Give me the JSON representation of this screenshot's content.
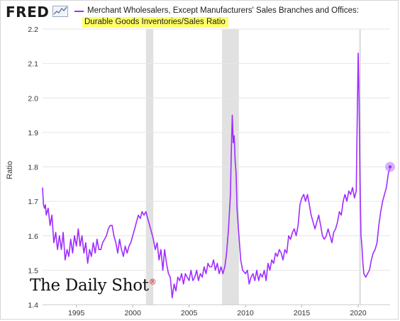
{
  "header": {
    "logo_text": "FRED",
    "logo_icon": "line-chart-icon",
    "legend_line1": "Merchant Wholesalers, Except Manufacturers' Sales Branches and Offices:",
    "legend_line2": "Durable Goods Inventories/Sales Ratio",
    "highlight_color": "#ffff66"
  },
  "watermark": {
    "text": "The Daily Shot",
    "mark": "®"
  },
  "colors": {
    "series": "#a02cff",
    "recession": "#e1e1e1",
    "grid": "#e6e6e6",
    "marker": "#b97fff"
  },
  "chart_data": {
    "type": "line",
    "title": "",
    "xlabel": "",
    "ylabel": "Ratio",
    "ylim": [
      1.4,
      2.2
    ],
    "xlim": [
      1992.0,
      2022.83
    ],
    "yticks": [
      1.4,
      1.5,
      1.6,
      1.7,
      1.8,
      1.9,
      2.0,
      2.1,
      2.2
    ],
    "xticks": [
      1995,
      2000,
      2005,
      2010,
      2015,
      2020
    ],
    "grid": "horizontal",
    "legend_position": "top",
    "recessions": [
      [
        2001.17,
        2001.83
      ],
      [
        2007.92,
        2009.42
      ],
      [
        2020.08,
        2020.25
      ]
    ],
    "series": [
      {
        "name": "Merchant Wholesalers, Except Manufacturers' Sales Branches and Offices: Durable Goods Inventories/Sales Ratio",
        "x": [
          1992.0,
          1992.08,
          1992.17,
          1992.25,
          1992.33,
          1992.5,
          1992.67,
          1992.83,
          1993.0,
          1993.17,
          1993.33,
          1993.5,
          1993.67,
          1993.83,
          1994.0,
          1994.17,
          1994.33,
          1994.5,
          1994.67,
          1994.83,
          1995.0,
          1995.17,
          1995.33,
          1995.5,
          1995.67,
          1995.83,
          1996.0,
          1996.17,
          1996.33,
          1996.5,
          1996.67,
          1996.83,
          1997.0,
          1997.17,
          1997.33,
          1997.5,
          1997.67,
          1997.83,
          1998.0,
          1998.17,
          1998.33,
          1998.5,
          1998.67,
          1998.83,
          1999.0,
          1999.17,
          1999.33,
          1999.5,
          1999.67,
          1999.83,
          2000.0,
          2000.17,
          2000.33,
          2000.5,
          2000.67,
          2000.83,
          2001.0,
          2001.17,
          2001.33,
          2001.5,
          2001.67,
          2001.83,
          2002.0,
          2002.17,
          2002.33,
          2002.5,
          2002.67,
          2002.83,
          2003.0,
          2003.17,
          2003.33,
          2003.5,
          2003.67,
          2003.83,
          2004.0,
          2004.17,
          2004.33,
          2004.5,
          2004.67,
          2004.83,
          2005.0,
          2005.17,
          2005.33,
          2005.5,
          2005.67,
          2005.83,
          2006.0,
          2006.17,
          2006.33,
          2006.5,
          2006.67,
          2006.83,
          2007.0,
          2007.17,
          2007.33,
          2007.5,
          2007.67,
          2007.83,
          2008.0,
          2008.17,
          2008.33,
          2008.5,
          2008.67,
          2008.75,
          2008.83,
          2008.92,
          2009.0,
          2009.08,
          2009.17,
          2009.25,
          2009.42,
          2009.58,
          2009.75,
          2010.0,
          2010.17,
          2010.33,
          2010.5,
          2010.67,
          2010.83,
          2011.0,
          2011.17,
          2011.33,
          2011.5,
          2011.67,
          2011.83,
          2012.0,
          2012.17,
          2012.33,
          2012.5,
          2012.67,
          2012.83,
          2013.0,
          2013.17,
          2013.33,
          2013.5,
          2013.67,
          2013.83,
          2014.0,
          2014.17,
          2014.33,
          2014.5,
          2014.67,
          2014.83,
          2015.0,
          2015.17,
          2015.33,
          2015.5,
          2015.67,
          2015.83,
          2016.0,
          2016.17,
          2016.33,
          2016.5,
          2016.67,
          2016.83,
          2017.0,
          2017.17,
          2017.33,
          2017.5,
          2017.67,
          2017.83,
          2018.0,
          2018.17,
          2018.33,
          2018.5,
          2018.67,
          2018.83,
          2019.0,
          2019.17,
          2019.33,
          2019.5,
          2019.67,
          2019.83,
          2020.0,
          2020.08,
          2020.17,
          2020.25,
          2020.33,
          2020.42,
          2020.5,
          2020.67,
          2020.83,
          2021.0,
          2021.17,
          2021.33,
          2021.5,
          2021.67,
          2021.83,
          2022.0,
          2022.17,
          2022.33,
          2022.5,
          2022.67,
          2022.83
        ],
        "y": [
          1.74,
          1.69,
          1.68,
          1.69,
          1.66,
          1.68,
          1.63,
          1.66,
          1.58,
          1.61,
          1.56,
          1.6,
          1.56,
          1.61,
          1.53,
          1.56,
          1.54,
          1.59,
          1.55,
          1.6,
          1.57,
          1.62,
          1.57,
          1.6,
          1.55,
          1.58,
          1.52,
          1.56,
          1.54,
          1.58,
          1.55,
          1.59,
          1.56,
          1.56,
          1.58,
          1.59,
          1.6,
          1.62,
          1.63,
          1.63,
          1.6,
          1.58,
          1.55,
          1.59,
          1.56,
          1.54,
          1.57,
          1.55,
          1.57,
          1.58,
          1.6,
          1.62,
          1.64,
          1.66,
          1.65,
          1.67,
          1.66,
          1.67,
          1.65,
          1.63,
          1.61,
          1.59,
          1.56,
          1.58,
          1.53,
          1.56,
          1.5,
          1.56,
          1.52,
          1.49,
          1.48,
          1.42,
          1.46,
          1.44,
          1.48,
          1.47,
          1.49,
          1.46,
          1.49,
          1.48,
          1.47,
          1.5,
          1.47,
          1.48,
          1.5,
          1.47,
          1.49,
          1.48,
          1.51,
          1.49,
          1.52,
          1.51,
          1.51,
          1.53,
          1.5,
          1.52,
          1.49,
          1.51,
          1.49,
          1.51,
          1.55,
          1.62,
          1.72,
          1.85,
          1.95,
          1.87,
          1.89,
          1.82,
          1.78,
          1.68,
          1.6,
          1.53,
          1.5,
          1.49,
          1.5,
          1.46,
          1.48,
          1.49,
          1.47,
          1.5,
          1.47,
          1.49,
          1.48,
          1.5,
          1.47,
          1.52,
          1.5,
          1.53,
          1.52,
          1.55,
          1.54,
          1.56,
          1.55,
          1.53,
          1.56,
          1.55,
          1.6,
          1.59,
          1.61,
          1.62,
          1.6,
          1.63,
          1.69,
          1.71,
          1.72,
          1.7,
          1.72,
          1.69,
          1.66,
          1.64,
          1.62,
          1.64,
          1.66,
          1.63,
          1.6,
          1.59,
          1.6,
          1.62,
          1.6,
          1.58,
          1.61,
          1.62,
          1.64,
          1.67,
          1.66,
          1.7,
          1.72,
          1.7,
          1.73,
          1.72,
          1.74,
          1.71,
          1.73,
          2.13,
          2.0,
          1.75,
          1.6,
          1.57,
          1.52,
          1.49,
          1.48,
          1.49,
          1.5,
          1.53,
          1.55,
          1.56,
          1.58,
          1.63,
          1.67,
          1.7,
          1.72,
          1.74,
          1.78,
          1.8
        ]
      }
    ]
  }
}
